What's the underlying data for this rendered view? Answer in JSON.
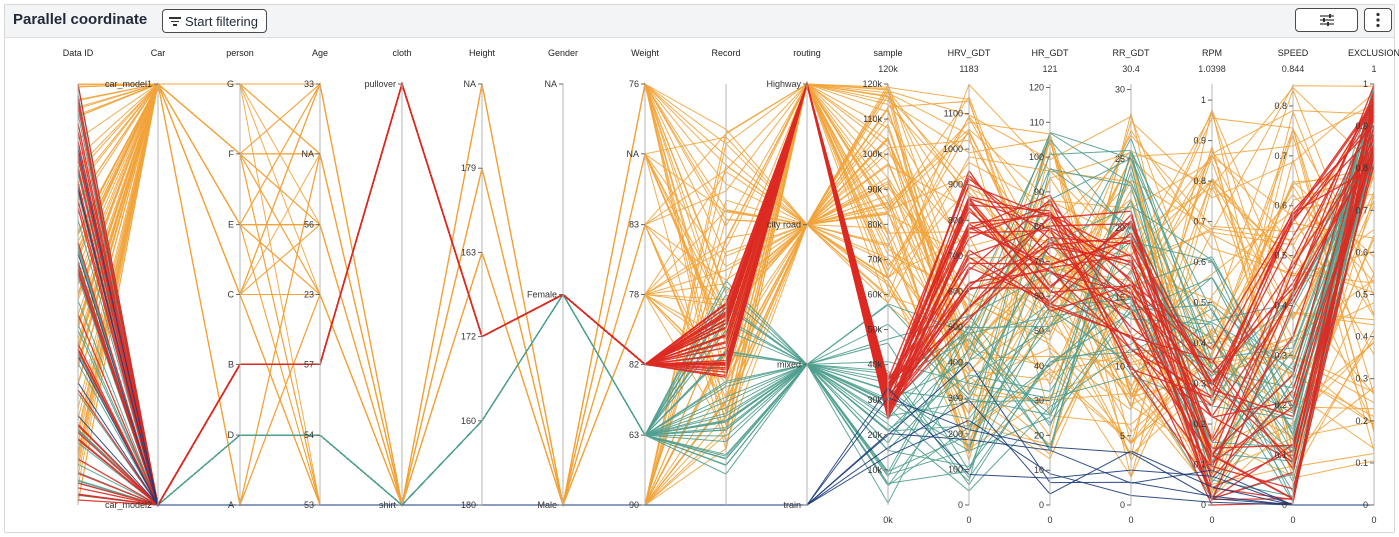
{
  "header": {
    "title": "Parallel coordinate",
    "filter_button_label": "Start filtering",
    "settings_icon": "sliders-icon",
    "more_icon": "kebab-menu-icon"
  },
  "colors": {
    "orange": "#f2a33a",
    "teal": "#4f9e8f",
    "red": "#db2a22",
    "navy": "#1b3b7a",
    "axis": "#b5b5b5"
  },
  "chart_data": {
    "type": "parallel-coordinates",
    "axes": [
      {
        "name": "Data ID",
        "ticks": []
      },
      {
        "name": "Car",
        "ticks": [
          "car_model1",
          "car_model2"
        ]
      },
      {
        "name": "person",
        "ticks": [
          "G",
          "F",
          "E",
          "C",
          "B",
          "D",
          "A"
        ]
      },
      {
        "name": "Age",
        "ticks": [
          "33",
          "NA",
          "56",
          "23",
          "57",
          "54",
          "53"
        ]
      },
      {
        "name": "cloth",
        "ticks": [
          "pullover",
          "shirt"
        ]
      },
      {
        "name": "Height",
        "ticks": [
          "NA",
          "179",
          "163",
          "172",
          "160",
          "180"
        ]
      },
      {
        "name": "Gender",
        "ticks": [
          "NA",
          "Female",
          "Male"
        ]
      },
      {
        "name": "Weight",
        "ticks": [
          "76",
          "NA",
          "83",
          "78",
          "82",
          "63",
          "90"
        ]
      },
      {
        "name": "Record",
        "ticks": []
      },
      {
        "name": "routing",
        "ticks": [
          "Highway",
          "city road",
          "mixed",
          "train"
        ]
      },
      {
        "name": "sample",
        "max": "120k",
        "min": "0k",
        "ticks": [
          "120k",
          "110k",
          "100k",
          "90k",
          "80k",
          "70k",
          "60k",
          "50k",
          "40k",
          "30k",
          "20k",
          "10k"
        ]
      },
      {
        "name": "HRV_GDT",
        "max": "1183",
        "min": "0",
        "ticks": [
          "1100",
          "1000",
          "900",
          "800",
          "700",
          "600",
          "500",
          "400",
          "300",
          "200",
          "100",
          "0"
        ]
      },
      {
        "name": "HR_GDT",
        "max": "121",
        "min": "0",
        "ticks": [
          "120",
          "110",
          "100",
          "90",
          "80",
          "70",
          "60",
          "50",
          "40",
          "30",
          "20",
          "10",
          "0"
        ]
      },
      {
        "name": "RR_GDT",
        "max": "30.4",
        "min": "0",
        "ticks": [
          "30",
          "25",
          "20",
          "15",
          "10",
          "5",
          "0"
        ]
      },
      {
        "name": "RPM",
        "max": "1.0398",
        "min": "0",
        "ticks": [
          "1",
          "0.9",
          "0.8",
          "0.7",
          "0.6",
          "0.5",
          "0.4",
          "0.3",
          "0.2",
          "0.1",
          "0"
        ]
      },
      {
        "name": "SPEED",
        "max": "0.844",
        "min": "0",
        "ticks": [
          "0.8",
          "0.7",
          "0.6",
          "0.5",
          "0.4",
          "0.3",
          "0.2",
          "0.1",
          "0"
        ]
      },
      {
        "name": "EXCLUSION",
        "max": "1",
        "min": "0",
        "ticks": [
          "1",
          "0.9",
          "0.8",
          "0.7",
          "0.6",
          "0.5",
          "0.4",
          "0.3",
          "0.2",
          "0.1",
          "0"
        ]
      }
    ]
  }
}
